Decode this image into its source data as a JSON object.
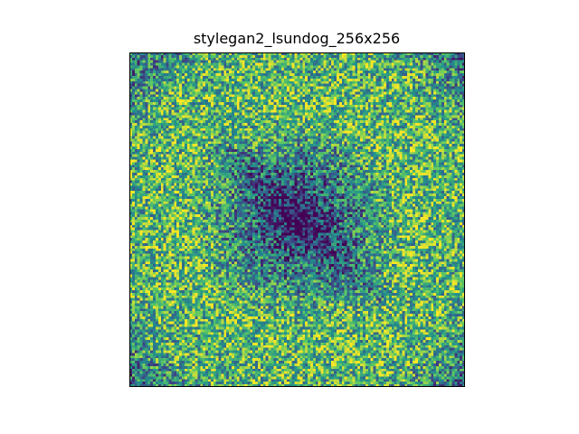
{
  "chart_data": {
    "type": "heatmap",
    "title": "stylegan2_lsundog_256x256",
    "xlabel": "",
    "ylabel": "",
    "axes_visible": false,
    "grid": false,
    "colormap": "viridis",
    "colormap_stops": [
      "#440154",
      "#3b528b",
      "#21918c",
      "#5ec962",
      "#fde725"
    ],
    "resolution": [
      128,
      128
    ],
    "description_of_values": "noisy spectrum: dark blue at the centre, yellow-green in the outer rings, blue again in the corners"
  }
}
